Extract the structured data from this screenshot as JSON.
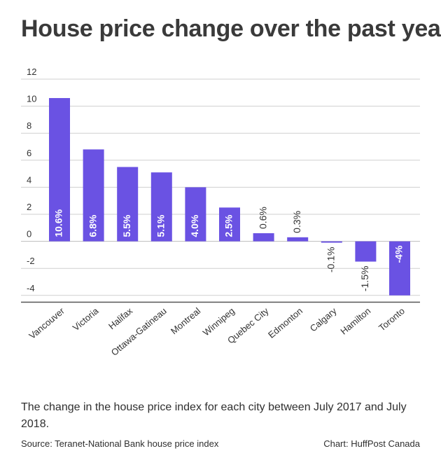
{
  "title": "House price change over the past year",
  "caption": "The change in the house price index for each city between July 2017 and July 2018.",
  "source": "Source: Teranet-National Bank house price index",
  "credit": "Chart: HuffPost Canada",
  "colors": {
    "bar": "#6a52e3",
    "grid": "#cfcfcf",
    "axis": "#555555",
    "text": "#333333"
  },
  "chart_data": {
    "type": "bar",
    "title": "House price change over the past year",
    "xlabel": "",
    "ylabel": "",
    "ylim": [
      -4.5,
      12
    ],
    "yticks": [
      12,
      10,
      8,
      6,
      4,
      2,
      0,
      -2,
      -4
    ],
    "grid": true,
    "categories": [
      "Vancouver",
      "Victoria",
      "Halifax",
      "Ottawa-Gatineau",
      "Montreal",
      "Winnipeg",
      "Quebec City",
      "Edmonton",
      "Calgary",
      "Hamilton",
      "Toronto"
    ],
    "values": [
      10.6,
      6.8,
      5.5,
      5.1,
      4.0,
      2.5,
      0.6,
      0.3,
      -0.1,
      -1.5,
      -4
    ],
    "data_labels": [
      "10.6%",
      "6.8%",
      "5.5%",
      "5.1%",
      "4.0%",
      "2.5%",
      "0.6%",
      "0.3%",
      "-0.1%",
      "-1.5%",
      "-4%"
    ]
  }
}
